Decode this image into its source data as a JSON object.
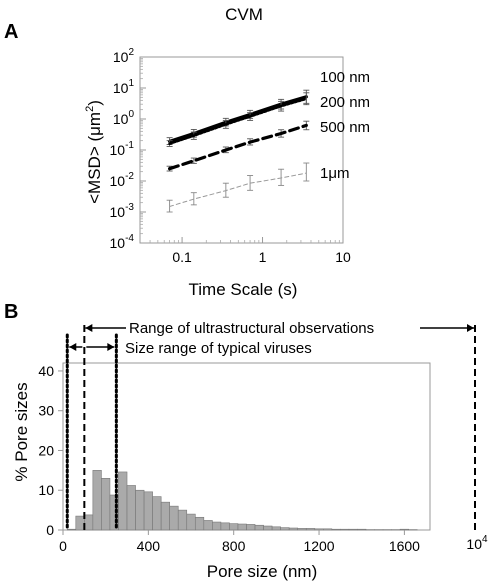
{
  "chart_data": [
    {
      "panel": "A",
      "type": "line",
      "title": "CVM",
      "xlabel": "Time Scale (s)",
      "ylabel": "<MSD> (μm²)",
      "xscale": "log",
      "yscale": "log",
      "xlim": [
        0.03,
        10
      ],
      "ylim": [
        0.0001,
        100
      ],
      "xticks": [
        {
          "v": 0.1,
          "label": "0.1"
        },
        {
          "v": 1,
          "label": "1"
        },
        {
          "v": 10,
          "label": "10"
        }
      ],
      "yticks": [
        {
          "v": 100,
          "label": "10",
          "exp": "2"
        },
        {
          "v": 10,
          "label": "10",
          "exp": "1"
        },
        {
          "v": 1,
          "label": "10",
          "exp": "0"
        },
        {
          "v": 0.1,
          "label": "10",
          "exp": "-1"
        },
        {
          "v": 0.01,
          "label": "10",
          "exp": "-2"
        },
        {
          "v": 0.001,
          "label": "10",
          "exp": "-3"
        },
        {
          "v": 0.0001,
          "label": "10",
          "exp": "-4"
        }
      ],
      "series": [
        {
          "name": "100 nm",
          "style": "solid-thick",
          "x": [
            0.07,
            0.14,
            0.35,
            0.7,
            1.7,
            3.5
          ],
          "y": [
            0.19,
            0.34,
            0.78,
            1.4,
            3.0,
            5.2
          ],
          "err_lo": [
            0.15,
            0.26,
            0.6,
            1.05,
            2.1,
            3.2
          ],
          "err_hi": [
            0.25,
            0.46,
            1.05,
            1.9,
            4.3,
            8.5
          ]
        },
        {
          "name": "200 nm",
          "style": "dotted-thick",
          "x": [
            0.07,
            0.14,
            0.35,
            0.7,
            1.7,
            3.5
          ],
          "y": [
            0.16,
            0.29,
            0.67,
            1.2,
            2.6,
            4.5
          ],
          "err_lo": [
            0.13,
            0.22,
            0.5,
            0.9,
            1.8,
            2.9
          ],
          "err_hi": [
            0.2,
            0.38,
            0.9,
            1.6,
            3.7,
            7.0
          ]
        },
        {
          "name": "500 nm",
          "style": "dashed-thick",
          "x": [
            0.07,
            0.14,
            0.35,
            0.7,
            1.7,
            3.5
          ],
          "y": [
            0.025,
            0.045,
            0.1,
            0.18,
            0.34,
            0.62
          ],
          "err_lo": [
            0.021,
            0.037,
            0.082,
            0.145,
            0.26,
            0.45
          ],
          "err_hi": [
            0.03,
            0.055,
            0.125,
            0.23,
            0.45,
            0.85
          ]
        },
        {
          "name": "1μm",
          "style": "dashed-thin",
          "x": [
            0.07,
            0.14,
            0.35,
            0.7,
            1.7,
            3.5
          ],
          "y": [
            0.0015,
            0.0026,
            0.0049,
            0.0085,
            0.0125,
            0.018
          ],
          "err_lo": [
            0.001,
            0.0017,
            0.003,
            0.005,
            0.0072,
            0.01
          ],
          "err_hi": [
            0.0024,
            0.0042,
            0.0085,
            0.015,
            0.024,
            0.038
          ]
        }
      ]
    },
    {
      "panel": "B",
      "type": "bar",
      "xlabel": "Pore size (nm)",
      "ylabel": "% Pore sizes",
      "xlim": [
        0,
        1720
      ],
      "ylim": [
        0,
        42
      ],
      "xticks": [
        {
          "v": 0,
          "label": "0"
        },
        {
          "v": 400,
          "label": "400"
        },
        {
          "v": 800,
          "label": "800"
        },
        {
          "v": 1200,
          "label": "1200"
        },
        {
          "v": 1600,
          "label": "1600"
        }
      ],
      "yticks": [
        {
          "v": 0,
          "label": "0"
        },
        {
          "v": 10,
          "label": "10"
        },
        {
          "v": 20,
          "label": "20"
        },
        {
          "v": 30,
          "label": "30"
        },
        {
          "v": 40,
          "label": "40"
        }
      ],
      "bin_width": 40,
      "bin_starts": [
        20,
        60,
        100,
        140,
        180,
        220,
        260,
        300,
        340,
        380,
        420,
        460,
        500,
        540,
        580,
        620,
        660,
        700,
        740,
        780,
        820,
        860,
        900,
        940,
        980,
        1020,
        1060,
        1100,
        1140,
        1180,
        1220,
        1260,
        1300,
        1340,
        1380,
        1420,
        1460,
        1500,
        1540,
        1580,
        1620
      ],
      "values": [
        0.2,
        3.5,
        3.8,
        15.0,
        13.0,
        8.8,
        14.6,
        11.2,
        10.0,
        9.6,
        8.4,
        7.0,
        6.0,
        5.0,
        4.0,
        3.2,
        2.4,
        2.0,
        1.8,
        1.6,
        1.5,
        1.4,
        1.2,
        1.0,
        0.8,
        0.6,
        0.5,
        0.4,
        0.4,
        0.3,
        0.3,
        0.2,
        0.2,
        0.2,
        0.2,
        0.1,
        0.1,
        0.1,
        0.1,
        0.2,
        0.1
      ],
      "break_tick": {
        "label": "10",
        "exp": "4"
      },
      "ranges": [
        {
          "label": "Range of ultrastructural observations",
          "from": 100,
          "to": 10000,
          "style": "dashed"
        },
        {
          "label": "Size range of typical viruses",
          "from": 20,
          "to": 250,
          "style": "dotted"
        }
      ]
    }
  ]
}
